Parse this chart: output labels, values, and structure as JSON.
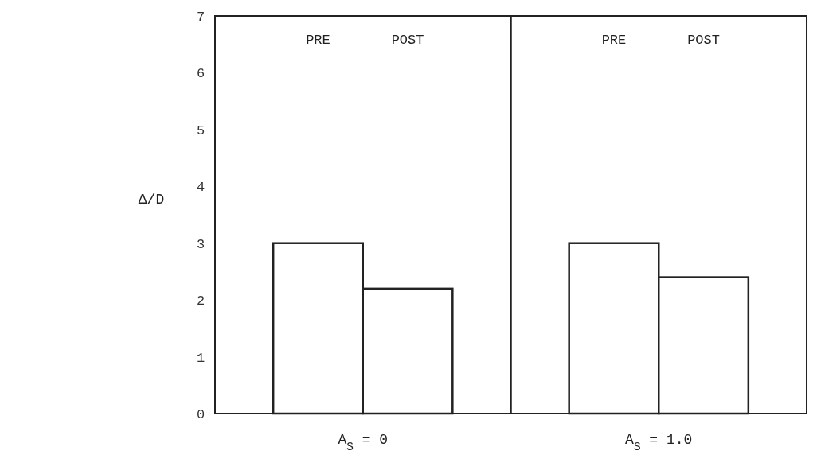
{
  "chart_data": [
    {
      "type": "bar",
      "categories": [
        "PRE",
        "POST"
      ],
      "values": [
        3.0,
        2.2
      ],
      "color": "#ffffff",
      "xlabel": "A$_{S}$ = 0",
      "ylabel": "Δ/D",
      "ylim": [
        0,
        7
      ],
      "yticks": [
        0,
        1,
        2,
        3,
        4,
        5,
        6,
        7
      ],
      "grid": false
    },
    {
      "type": "bar",
      "categories": [
        "PRE",
        "POST"
      ],
      "values": [
        3.0,
        2.4
      ],
      "color": "#ffffff",
      "xlabel": "A$_{S}$ = 1.0",
      "ylim": [
        0,
        7
      ],
      "yticks": [
        0,
        1,
        2,
        3,
        4,
        5,
        6,
        7
      ],
      "tick_labels": "x",
      "grid": false
    }
  ]
}
